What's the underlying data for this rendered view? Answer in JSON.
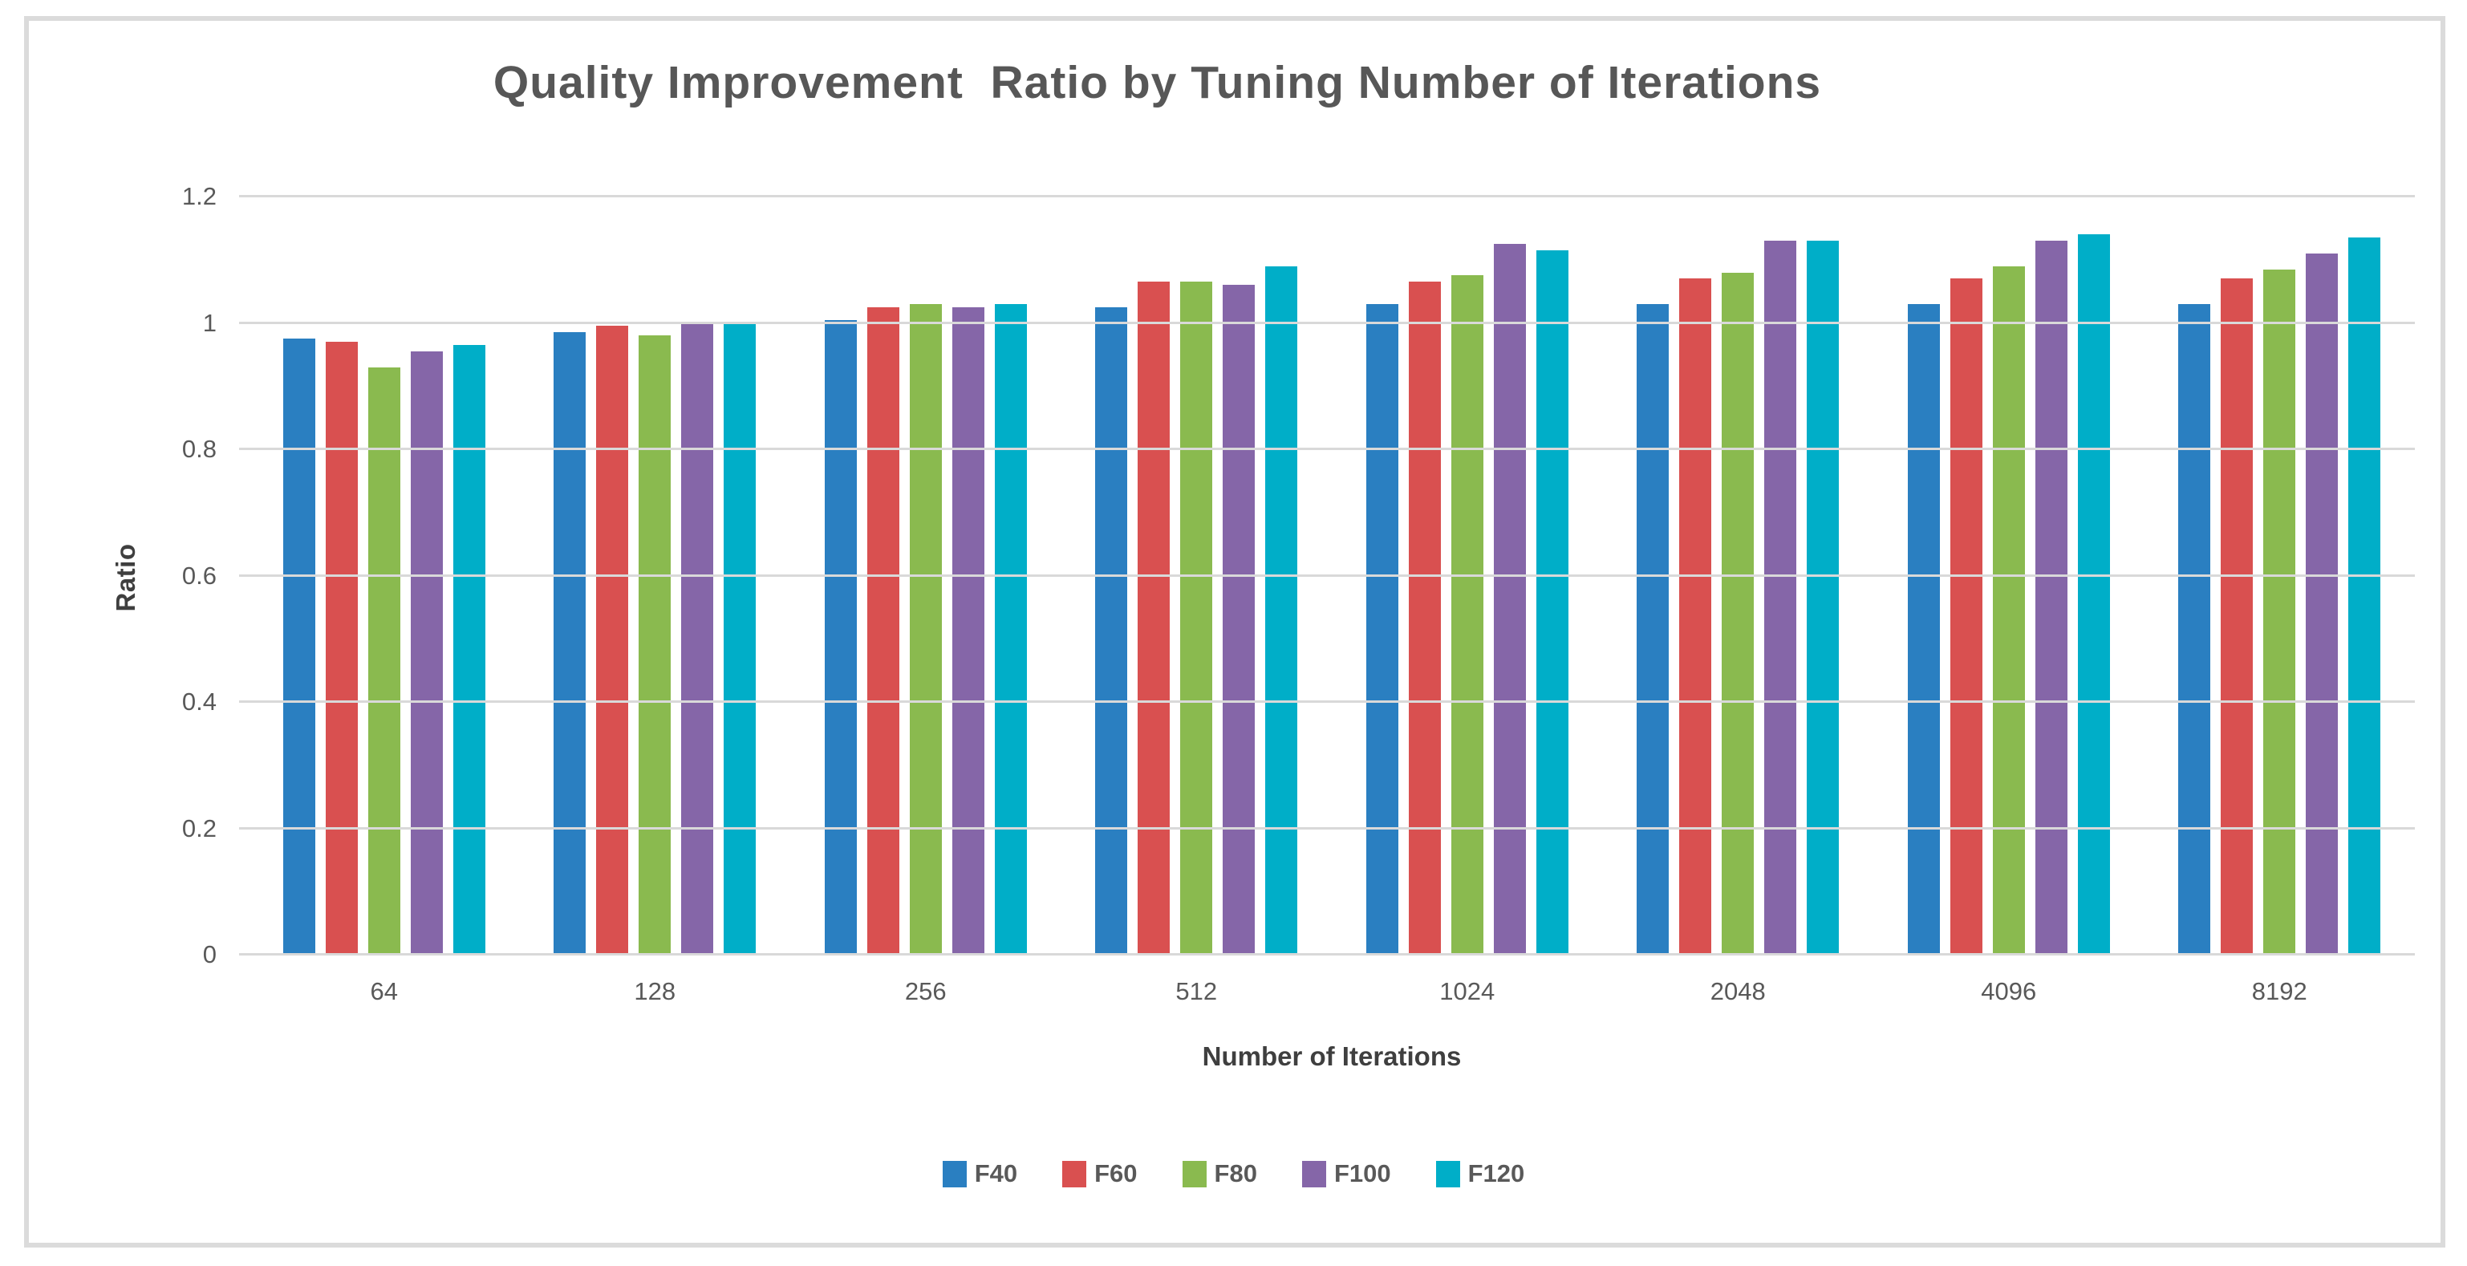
{
  "title": "Quality Improvement  Ratio by Tuning Number of Iterations",
  "frame": {
    "border_color": "#dbdbdb"
  },
  "colors": {
    "text_dark": "#3f3f3f",
    "text_gray": "#595959",
    "gridline": "#d9d9d9",
    "background": "#ffffff"
  },
  "chart_data": {
    "type": "bar",
    "title": "Quality Improvement  Ratio by Tuning Number of Iterations",
    "xlabel": "Number of Iterations",
    "ylabel": "Ratio",
    "ylim": [
      0,
      1.2
    ],
    "yticks": [
      0,
      0.2,
      0.4,
      0.6,
      0.8,
      1,
      1.2
    ],
    "ytick_labels": [
      "0",
      "0.2",
      "0.4",
      "0.6",
      "0.8",
      "1",
      "1.2"
    ],
    "grid": true,
    "legend_position": "bottom",
    "categories": [
      "64",
      "128",
      "256",
      "512",
      "1024",
      "2048",
      "4096",
      "8192"
    ],
    "series": [
      {
        "name": "F40",
        "color": "#2a7fc1",
        "values": [
          0.975,
          0.985,
          1.005,
          1.025,
          1.03,
          1.03,
          1.03,
          1.03
        ]
      },
      {
        "name": "F60",
        "color": "#d95050",
        "values": [
          0.97,
          0.995,
          1.025,
          1.065,
          1.065,
          1.07,
          1.07,
          1.07
        ]
      },
      {
        "name": "F80",
        "color": "#8aba4f",
        "values": [
          0.93,
          0.98,
          1.03,
          1.065,
          1.075,
          1.08,
          1.09,
          1.085
        ]
      },
      {
        "name": "F100",
        "color": "#8566a8",
        "values": [
          0.955,
          1.0,
          1.025,
          1.06,
          1.125,
          1.13,
          1.13,
          1.11
        ]
      },
      {
        "name": "F120",
        "color": "#00aec8",
        "values": [
          0.965,
          1.0,
          1.03,
          1.09,
          1.115,
          1.13,
          1.14,
          1.135
        ]
      }
    ]
  }
}
